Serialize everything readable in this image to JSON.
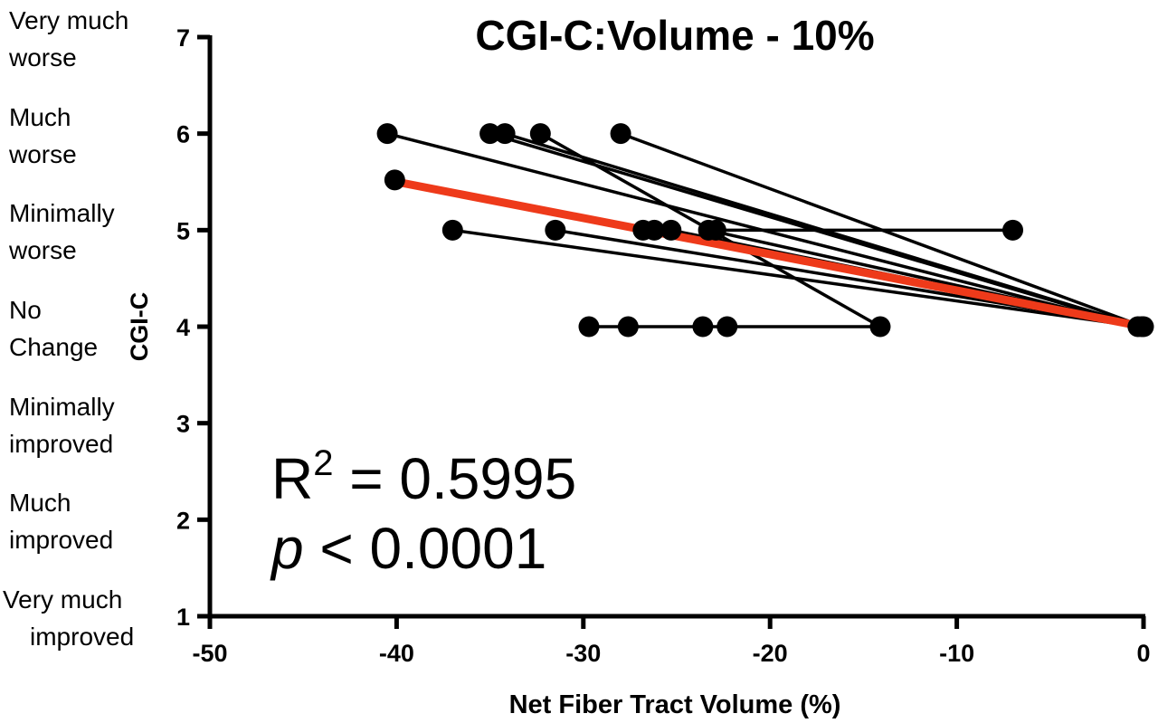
{
  "chart_data": {
    "type": "scatter",
    "title": "CGI-C:Volume - 10%",
    "xlabel": "Net Fiber Tract Volume (%)",
    "ylabel": "CGI-C",
    "xlim": [
      -50,
      0
    ],
    "ylim": [
      1,
      7
    ],
    "x_ticks": [
      "-50",
      "-40",
      "-30",
      "-20",
      "-10",
      "0"
    ],
    "y_ticks": [
      "1",
      "2",
      "3",
      "4",
      "5",
      "6",
      "7"
    ],
    "y_categories": [
      {
        "value": 7,
        "lines": [
          "Very much",
          "worse"
        ]
      },
      {
        "value": 6,
        "lines": [
          "Much",
          "worse"
        ]
      },
      {
        "value": 5,
        "lines": [
          "Minimally",
          "worse"
        ]
      },
      {
        "value": 4,
        "lines": [
          "No",
          "Change"
        ]
      },
      {
        "value": 3,
        "lines": [
          "Minimally",
          "improved"
        ]
      },
      {
        "value": 2,
        "lines": [
          "Much",
          "improved"
        ]
      },
      {
        "value": 1,
        "lines": [
          "Very much",
          "improved"
        ]
      }
    ],
    "paired_lines": [
      {
        "from": [
          -40.5,
          6
        ],
        "to": [
          -0.3,
          4
        ]
      },
      {
        "from": [
          -35,
          6
        ],
        "to": [
          -0.2,
          4
        ]
      },
      {
        "from": [
          -34.2,
          6
        ],
        "to": [
          -0.1,
          4
        ]
      },
      {
        "from": [
          -32.3,
          6
        ],
        "to": [
          -14.1,
          4
        ]
      },
      {
        "from": [
          -28,
          6
        ],
        "to": [
          0,
          4
        ]
      },
      {
        "from": [
          -37,
          5
        ],
        "to": [
          -0.2,
          4
        ]
      },
      {
        "from": [
          -31.5,
          5
        ],
        "to": [
          0,
          4
        ]
      },
      {
        "from": [
          -26.8,
          5
        ],
        "to": [
          -0.1,
          4
        ]
      },
      {
        "from": [
          -26.2,
          5
        ],
        "to": [
          -0.2,
          4
        ]
      },
      {
        "from": [
          -25.3,
          5
        ],
        "to": [
          0,
          4
        ]
      },
      {
        "from": [
          -23.3,
          5
        ],
        "to": [
          -0.1,
          4
        ]
      },
      {
        "from": [
          -22.9,
          5
        ],
        "to": [
          -7,
          5
        ]
      },
      {
        "from": [
          -29.7,
          4
        ],
        "to": [
          -14.1,
          4
        ]
      }
    ],
    "points": [
      {
        "x": -40.5,
        "y": 6
      },
      {
        "x": -35,
        "y": 6
      },
      {
        "x": -34.2,
        "y": 6
      },
      {
        "x": -32.3,
        "y": 6
      },
      {
        "x": -28,
        "y": 6
      },
      {
        "x": -40.1,
        "y": 5.52
      },
      {
        "x": -37,
        "y": 5
      },
      {
        "x": -31.5,
        "y": 5
      },
      {
        "x": -26.8,
        "y": 5
      },
      {
        "x": -26.2,
        "y": 5
      },
      {
        "x": -25.3,
        "y": 5
      },
      {
        "x": -23.3,
        "y": 5
      },
      {
        "x": -22.9,
        "y": 5
      },
      {
        "x": -7,
        "y": 5
      },
      {
        "x": -29.7,
        "y": 4
      },
      {
        "x": -27.6,
        "y": 4
      },
      {
        "x": -23.6,
        "y": 4
      },
      {
        "x": -22.3,
        "y": 4
      },
      {
        "x": -14.1,
        "y": 4
      },
      {
        "x": -0.3,
        "y": 4
      },
      {
        "x": -0.1,
        "y": 4
      },
      {
        "x": 0,
        "y": 4
      }
    ],
    "regression": {
      "from": [
        -40,
        5.5
      ],
      "to": [
        0,
        4
      ],
      "color": "#ee3a1a"
    },
    "colors": {
      "points": "#000000",
      "lines": "#000000",
      "regression": "#ee3a1a"
    }
  },
  "stats": {
    "r_base": "R",
    "r_sup": "2",
    "r_rest": " = 0.5995",
    "p_symbol": "p",
    "p_rest": " < 0.0001"
  }
}
